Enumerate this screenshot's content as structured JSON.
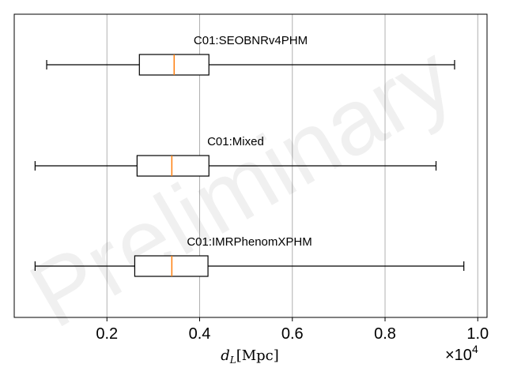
{
  "watermark": "Preliminary",
  "chart_data": {
    "type": "boxplot",
    "orientation": "horizontal",
    "xlabel": "d_L[Mpc]",
    "xlabel_parts": {
      "main": "d",
      "sub": "L",
      "unit": "[Mpc]"
    },
    "x_multiplier": "×10",
    "x_multiplier_exp": "4",
    "xlim": [
      0.0,
      1.02
    ],
    "xticks": [
      0.2,
      0.4,
      0.6,
      0.8,
      1.0
    ],
    "xtick_labels": [
      "0.2",
      "0.4",
      "0.6",
      "0.8",
      "1.0"
    ],
    "grid": "vertical",
    "colors": {
      "box": "#000000",
      "median": "#ff7f0e",
      "grid": "#b0b0b0"
    },
    "series": [
      {
        "name": "C01:SEOBNRv4PHM",
        "whisker_low": 0.07,
        "q1": 0.27,
        "median": 0.345,
        "q3": 0.42,
        "whisker_high": 0.95
      },
      {
        "name": "C01:Mixed",
        "whisker_low": 0.045,
        "q1": 0.265,
        "median": 0.34,
        "q3": 0.42,
        "whisker_high": 0.91
      },
      {
        "name": "C01:IMRPhenomXPHM",
        "whisker_low": 0.045,
        "q1": 0.26,
        "median": 0.34,
        "q3": 0.418,
        "whisker_high": 0.97
      }
    ]
  }
}
